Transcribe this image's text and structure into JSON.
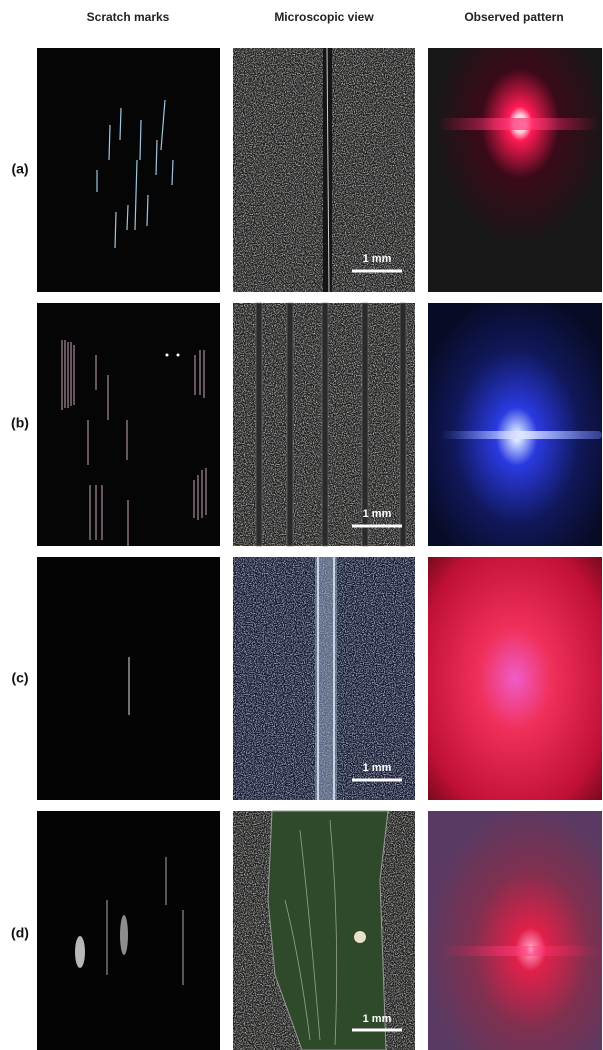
{
  "headers": [
    "Scratch marks",
    "Microscopic view",
    "Observed pattern"
  ],
  "rows": [
    {
      "label": "(a)",
      "scale_bar": "1 mm"
    },
    {
      "label": "(b)",
      "scale_bar": "1 mm"
    },
    {
      "label": "(c)",
      "scale_bar": "1 mm"
    },
    {
      "label": "(d)",
      "scale_bar": "1 mm"
    }
  ]
}
